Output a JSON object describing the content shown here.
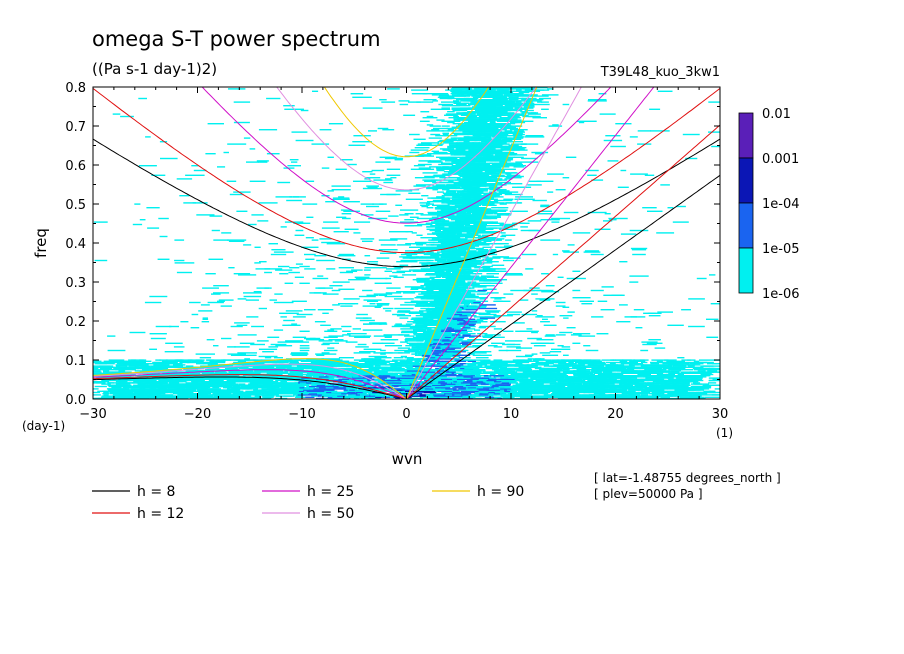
{
  "chart_data": {
    "type": "heatmap",
    "title": "omega S-T power spectrum",
    "subtitle": "((Pa s-1 day-1)2)",
    "dataset_label": "T39L48_kuo_3kw1",
    "xlabel": "wvn",
    "ylabel": "freq",
    "x_unit": "(1)",
    "y_unit": "(day-1)",
    "xlim": [
      -30,
      30
    ],
    "ylim": [
      0,
      0.8
    ],
    "x_ticks": [
      -30,
      -20,
      -10,
      0,
      10,
      20,
      30
    ],
    "y_ticks": [
      0.0,
      0.1,
      0.2,
      0.3,
      0.4,
      0.5,
      0.6,
      0.7,
      0.8
    ],
    "colorbar": {
      "levels": [
        "0.01",
        "0.001",
        "1e-04",
        "1e-05",
        "1e-06"
      ],
      "colors": [
        "#5a1fb8",
        "#0b16b5",
        "#1a64f0",
        "#00f0f0"
      ]
    },
    "annotations": [
      "[ lat=-1.48755 degrees_north ]",
      "[ plev=50000 Pa ]"
    ],
    "dispersion_curves": [
      {
        "label": "h =  8",
        "h": 8,
        "color": "#000000"
      },
      {
        "label": "h = 12",
        "h": 12,
        "color": "#e01010"
      },
      {
        "label": "h = 25",
        "h": 25,
        "color": "#d010c8"
      },
      {
        "label": "h = 50",
        "h": 50,
        "color": "#e090e0"
      },
      {
        "label": "h = 90",
        "h": 90,
        "color": "#f0c800"
      }
    ]
  }
}
